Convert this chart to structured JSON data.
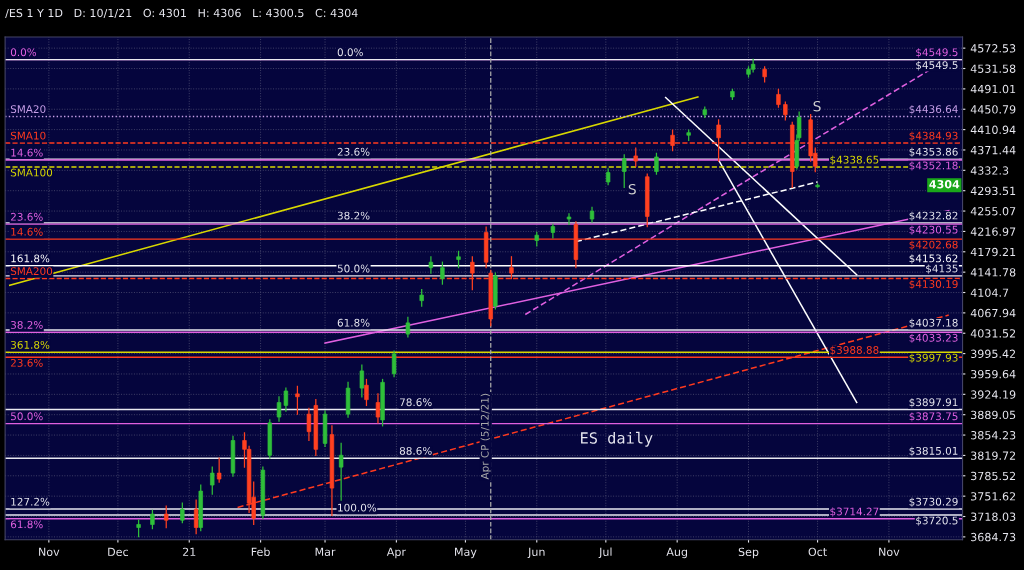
{
  "chart_data": {
    "type": "candlestick",
    "log": "y",
    "grid": true,
    "xlim": [
      "2020-10-13",
      "2021-12-03"
    ],
    "xticks": [
      {
        "value": "2020-11-01",
        "label": "Nov"
      },
      {
        "value": "2020-12-01",
        "label": "Dec"
      },
      {
        "value": "2021-01-01",
        "label": "21"
      },
      {
        "value": "2021-02-01",
        "label": "Feb"
      },
      {
        "value": "2021-03-01",
        "label": "Mar"
      },
      {
        "value": "2021-04-01",
        "label": "Apr"
      },
      {
        "value": "2021-05-01",
        "label": "May"
      },
      {
        "value": "2021-06-01",
        "label": "Jun"
      },
      {
        "value": "2021-07-01",
        "label": "Jul"
      },
      {
        "value": "2021-08-01",
        "label": "Aug"
      },
      {
        "value": "2021-09-01",
        "label": "Sep"
      },
      {
        "value": "2021-10-01",
        "label": "Oct"
      },
      {
        "value": "2021-11-01",
        "label": "Nov"
      }
    ],
    "ylim": [
      3680,
      4595
    ],
    "yticks": [
      4572.53,
      4531.58,
      4491.01,
      4450.79,
      4410.94,
      4371.44,
      4332.3,
      4293.51,
      4255.07,
      4216.97,
      4179.21,
      4141.78,
      4104.7,
      4067.94,
      4031.52,
      3995.42,
      3959.64,
      3924.19,
      3889.05,
      3854.23,
      3819.72,
      3785.52,
      3751.62,
      3718.03,
      3684.73
    ],
    "series": [
      {
        "type": "line",
        "x": [
          "2020-10-15",
          "2021-08-10"
        ],
        "values": [
          4118,
          4475
        ],
        "color": "#d8d800",
        "line_style": "solid"
      },
      {
        "type": "line",
        "x": [
          "2021-03-01",
          "2021-11-27"
        ],
        "values": [
          4014,
          4256
        ],
        "color": "#e060e0",
        "line_style": "solid"
      },
      {
        "type": "line",
        "x": [
          "2021-05-27",
          "2021-11-27"
        ],
        "values": [
          4065,
          4552
        ],
        "color": "#e060e0",
        "line_style": "dashed"
      },
      {
        "type": "line",
        "x": [
          "2021-06-18",
          "2021-10-01"
        ],
        "values": [
          4198,
          4310
        ],
        "color": "#ffffff",
        "line_style": "dashed"
      },
      {
        "type": "line",
        "x": [
          "2021-01-22",
          "2021-11-27"
        ],
        "values": [
          3733,
          4064
        ],
        "color": "#ff3a1e",
        "line_style": "dashed"
      },
      {
        "type": "line",
        "x": [
          "2021-07-27",
          "2021-10-18"
        ],
        "values": [
          4474,
          4137
        ],
        "color": "#ffffff",
        "line_style": "solid"
      },
      {
        "type": "line",
        "x": [
          "2021-08-19",
          "2021-10-18"
        ],
        "values": [
          4352,
          3910
        ],
        "color": "#ffffff",
        "line_style": "solid"
      },
      {
        "x": [
          "2020-12-10",
          "2020-12-16",
          "2020-12-22",
          "2020-12-29",
          "2021-01-04",
          "2021-01-06",
          "2021-01-11",
          "2021-01-14",
          "2021-01-20",
          "2021-01-25",
          "2021-01-27",
          "2021-01-29",
          "2021-02-02",
          "2021-02-05",
          "2021-02-09",
          "2021-02-12",
          "2021-02-17",
          "2021-02-22",
          "2021-02-25",
          "2021-03-01",
          "2021-03-04",
          "2021-03-08",
          "2021-03-11",
          "2021-03-17",
          "2021-03-19",
          "2021-03-24",
          "2021-03-26",
          "2021-03-31",
          "2021-04-06",
          "2021-04-12",
          "2021-04-16",
          "2021-04-21",
          "2021-04-28",
          "2021-05-04",
          "2021-05-10",
          "2021-05-12",
          "2021-05-14",
          "2021-05-21",
          "2021-06-01",
          "2021-06-08",
          "2021-06-15",
          "2021-06-18",
          "2021-06-25",
          "2021-07-02",
          "2021-07-09",
          "2021-07-14",
          "2021-07-19",
          "2021-07-23",
          "2021-07-30",
          "2021-08-06",
          "2021-08-13",
          "2021-08-19",
          "2021-08-25",
          "2021-09-01",
          "2021-09-03",
          "2021-09-08",
          "2021-09-14",
          "2021-09-17",
          "2021-09-20",
          "2021-09-22",
          "2021-09-23",
          "2021-09-28",
          "2021-09-30",
          "2021-10-01"
        ],
        "ohlc": [
          [
            3700,
            3712,
            3685,
            3705
          ],
          [
            3705,
            3728,
            3698,
            3722
          ],
          [
            3722,
            3735,
            3700,
            3712
          ],
          [
            3712,
            3740,
            3708,
            3730
          ],
          [
            3730,
            3745,
            3690,
            3700
          ],
          [
            3700,
            3770,
            3695,
            3760
          ],
          [
            3770,
            3800,
            3755,
            3790
          ],
          [
            3790,
            3815,
            3775,
            3780
          ],
          [
            3790,
            3852,
            3785,
            3845
          ],
          [
            3845,
            3858,
            3800,
            3830
          ],
          [
            3830,
            3835,
            3725,
            3740
          ],
          [
            3750,
            3775,
            3705,
            3715
          ],
          [
            3720,
            3800,
            3715,
            3795
          ],
          [
            3820,
            3880,
            3815,
            3875
          ],
          [
            3885,
            3920,
            3878,
            3910
          ],
          [
            3905,
            3935,
            3895,
            3930
          ],
          [
            3925,
            3938,
            3890,
            3920
          ],
          [
            3890,
            3900,
            3845,
            3860
          ],
          [
            3905,
            3915,
            3820,
            3830
          ],
          [
            3840,
            3895,
            3835,
            3890
          ],
          [
            3855,
            3870,
            3720,
            3765
          ],
          [
            3800,
            3840,
            3745,
            3820
          ],
          [
            3890,
            3945,
            3885,
            3935
          ],
          [
            3935,
            3975,
            3920,
            3965
          ],
          [
            3940,
            3950,
            3905,
            3915
          ],
          [
            3910,
            3925,
            3875,
            3885
          ],
          [
            3880,
            3950,
            3870,
            3945
          ],
          [
            3960,
            4000,
            3955,
            3995
          ],
          [
            4030,
            4060,
            4025,
            4050
          ],
          [
            4090,
            4110,
            4080,
            4100
          ],
          [
            4150,
            4170,
            4140,
            4160
          ],
          [
            4130,
            4160,
            4120,
            4150
          ],
          [
            4165,
            4180,
            4150,
            4170
          ],
          [
            4160,
            4170,
            4110,
            4140
          ],
          [
            4215,
            4225,
            4150,
            4160
          ],
          [
            4140,
            4145,
            4045,
            4057
          ],
          [
            4080,
            4140,
            4075,
            4135
          ],
          [
            4150,
            4170,
            4130,
            4140
          ],
          [
            4200,
            4215,
            4190,
            4210
          ],
          [
            4215,
            4230,
            4205,
            4226
          ],
          [
            4240,
            4250,
            4230,
            4244
          ],
          [
            4230,
            4235,
            4150,
            4165
          ],
          [
            4240,
            4262,
            4235,
            4255
          ],
          [
            4310,
            4335,
            4305,
            4328
          ],
          [
            4330,
            4362,
            4300,
            4355
          ],
          [
            4360,
            4375,
            4340,
            4350
          ],
          [
            4320,
            4325,
            4226,
            4245
          ],
          [
            4330,
            4365,
            4325,
            4358
          ],
          [
            4400,
            4410,
            4370,
            4380
          ],
          [
            4400,
            4410,
            4390,
            4405
          ],
          [
            4440,
            4455,
            4435,
            4450
          ],
          [
            4420,
            4430,
            4350,
            4395
          ],
          [
            4475,
            4490,
            4470,
            4486
          ],
          [
            4520,
            4535,
            4515,
            4530
          ],
          [
            4530,
            4550,
            4525,
            4540
          ],
          [
            4530,
            4535,
            4505,
            4515
          ],
          [
            4480,
            4490,
            4455,
            4460
          ],
          [
            4460,
            4465,
            4430,
            4440
          ],
          [
            4420,
            4425,
            4300,
            4330
          ],
          [
            4340,
            4400,
            4335,
            4390
          ],
          [
            4395,
            4445,
            4390,
            4435
          ],
          [
            4430,
            4440,
            4350,
            4360
          ],
          [
            4365,
            4375,
            4330,
            4340
          ],
          [
            4301,
            4306,
            4300.5,
            4304
          ]
        ],
        "colors": [
          "#2fbf3a",
          "#2fbf3a",
          "#ff4020",
          "#2fbf3a",
          "#ff4020",
          "#2fbf3a",
          "#2fbf3a",
          "#ff4020",
          "#2fbf3a",
          "#ff4020",
          "#ff4020",
          "#ff4020",
          "#2fbf3a",
          "#2fbf3a",
          "#2fbf3a",
          "#2fbf3a",
          "#ff4020",
          "#ff4020",
          "#ff4020",
          "#2fbf3a",
          "#ff4020",
          "#2fbf3a",
          "#2fbf3a",
          "#2fbf3a",
          "#ff4020",
          "#ff4020",
          "#2fbf3a",
          "#2fbf3a",
          "#2fbf3a",
          "#2fbf3a",
          "#2fbf3a",
          "#2fbf3a",
          "#2fbf3a",
          "#ff4020",
          "#ff4020",
          "#ff4020",
          "#2fbf3a",
          "#ff4020",
          "#2fbf3a",
          "#2fbf3a",
          "#2fbf3a",
          "#ff4020",
          "#2fbf3a",
          "#2fbf3a",
          "#2fbf3a",
          "#ff4020",
          "#ff4020",
          "#2fbf3a",
          "#ff4020",
          "#2fbf3a",
          "#2fbf3a",
          "#ff4020",
          "#2fbf3a",
          "#2fbf3a",
          "#2fbf3a",
          "#ff4020",
          "#ff4020",
          "#ff4020",
          "#ff4020",
          "#2fbf3a",
          "#2fbf3a",
          "#ff4020",
          "#ff4020",
          "#2fbf3a"
        ]
      }
    ],
    "ref_lines": [
      {
        "axis": "y",
        "value": 4549.5,
        "label": "$4549.5",
        "color": "#e060e0",
        "line_style": "solid"
      },
      {
        "axis": "y",
        "value": 4549.5,
        "label": "$4549.5",
        "color": "#e8e8f0",
        "line_style": "solid"
      },
      {
        "axis": "y",
        "value": 4436.64,
        "label": "$4436.64",
        "color": "#c8a0e8",
        "line_style": "dotted"
      },
      {
        "axis": "y",
        "value": 4384.93,
        "label": "$4384.93",
        "color": "#ff3a1e",
        "line_style": "dashed"
      },
      {
        "axis": "y",
        "value": 4353.86,
        "label": "$4353.86",
        "color": "#e8e8f0",
        "line_style": "solid"
      },
      {
        "axis": "y",
        "value": 4352.18,
        "label": "$4352.18",
        "color": "#e060e0",
        "line_style": "solid"
      },
      {
        "axis": "y",
        "value": 4338.65,
        "label": "$4338.65",
        "color": "#d8d800",
        "line_style": "dashed"
      },
      {
        "axis": "y",
        "value": 4232.82,
        "label": "$4232.82",
        "color": "#e8e8f0",
        "line_style": "solid"
      },
      {
        "axis": "y",
        "value": 4230.55,
        "label": "$4230.55",
        "color": "#e060e0",
        "line_style": "solid"
      },
      {
        "axis": "y",
        "value": 4202.68,
        "label": "$4202.68",
        "color": "#ff3a1e",
        "line_style": "solid"
      },
      {
        "axis": "y",
        "value": 4153.62,
        "label": "$4153.62",
        "color": "#ffffff",
        "line_style": "solid"
      },
      {
        "axis": "y",
        "value": 4135,
        "label": "$4135",
        "color": "#e8e8f0",
        "line_style": "solid"
      },
      {
        "axis": "y",
        "value": 4130.19,
        "label": "$4130.19",
        "color": "#ff3a1e",
        "line_style": "dashed"
      },
      {
        "axis": "y",
        "value": 4037.18,
        "label": "$4037.18",
        "color": "#e8e8f0",
        "line_style": "solid"
      },
      {
        "axis": "y",
        "value": 4033.23,
        "label": "$4033.23",
        "color": "#e060e0",
        "line_style": "solid"
      },
      {
        "axis": "y",
        "value": 3997.93,
        "label": "$3997.93",
        "color": "#d8d800",
        "line_style": "solid"
      },
      {
        "axis": "y",
        "value": 3988.88,
        "label": "$3988.88",
        "color": "#ff3a1e",
        "line_style": "solid"
      },
      {
        "axis": "y",
        "value": 3897.91,
        "label": "$3897.91",
        "color": "#e8e8f0",
        "line_style": "solid"
      },
      {
        "axis": "y",
        "value": 3873.75,
        "label": "$3873.75",
        "color": "#e060e0",
        "line_style": "solid"
      },
      {
        "axis": "y",
        "value": 3815.01,
        "label": "$3815.01",
        "color": "#e8e8f0",
        "line_style": "solid"
      },
      {
        "axis": "y",
        "value": 3730.29,
        "label": "$3730.29",
        "color": "#e8e8f0",
        "line_style": "solid"
      },
      {
        "axis": "y",
        "value": 3720.5,
        "label": "$3720.5",
        "color": "#e8e8f0",
        "line_style": "solid"
      },
      {
        "axis": "y",
        "value": 3714.27,
        "label": "$3714.27",
        "color": "#e060e0",
        "line_style": "solid"
      },
      {
        "axis": "x",
        "value": "2021-05-12",
        "label": "Apr CP (5/12/21)",
        "color": "#aaaaaa",
        "line_style": "dashed"
      }
    ],
    "annotations": [
      "/ES 1 Y 1D   D: 10/1/21   O: 4301   H: 4306   L: 4300.5   C: 4304",
      "ES daily",
      {
        "text": "4304",
        "y": 4304
      },
      {
        "text": "0.0%",
        "x": "2020-10-14",
        "y": 4549.5
      },
      {
        "text": "SMA20",
        "x": "2020-10-14",
        "y": 4436.64
      },
      {
        "text": "SMA10",
        "x": "2020-10-14",
        "y": 4384.93
      },
      {
        "text": "14.6%",
        "x": "2020-10-14",
        "y": 4352.18
      },
      {
        "text": "SMA100",
        "x": "2020-10-14",
        "y": 4338.65
      },
      {
        "text": "23.6%",
        "x": "2020-10-14",
        "y": 4230.55
      },
      {
        "text": "14.6%",
        "x": "2020-10-14",
        "y": 4202.68
      },
      {
        "text": "161.8%",
        "x": "2020-10-14",
        "y": 4153.62
      },
      {
        "text": "SMA200",
        "x": "2020-10-14",
        "y": 4130.19
      },
      {
        "text": "38.2%",
        "x": "2020-10-14",
        "y": 4033.23
      },
      {
        "text": "361.8%",
        "x": "2020-10-14",
        "y": 3997.93
      },
      {
        "text": "23.6%",
        "x": "2020-10-14",
        "y": 3988.88
      },
      {
        "text": "50.0%",
        "x": "2020-10-14",
        "y": 3873.75
      },
      {
        "text": "127.2%",
        "x": "2020-10-14",
        "y": 3730.29
      },
      {
        "text": "61.8%",
        "x": "2020-10-14",
        "y": 3714.27
      },
      {
        "text": "0.0%",
        "x": "2021-03-05",
        "y": 4549.5
      },
      {
        "text": "23.6%",
        "x": "2021-03-05",
        "y": 4353.86
      },
      {
        "text": "38.2%",
        "x": "2021-03-05",
        "y": 4232.82
      },
      {
        "text": "50.0%",
        "x": "2021-03-05",
        "y": 4135
      },
      {
        "text": "61.8%",
        "x": "2021-03-05",
        "y": 4037.18
      },
      {
        "text": "78.6%",
        "x": "2021-04-01",
        "y": 3897.91
      },
      {
        "text": "88.6%",
        "x": "2021-04-01",
        "y": 3815.01
      },
      {
        "text": "100.0%",
        "x": "2021-03-05",
        "y": 3720.5
      },
      "S",
      "S"
    ]
  }
}
